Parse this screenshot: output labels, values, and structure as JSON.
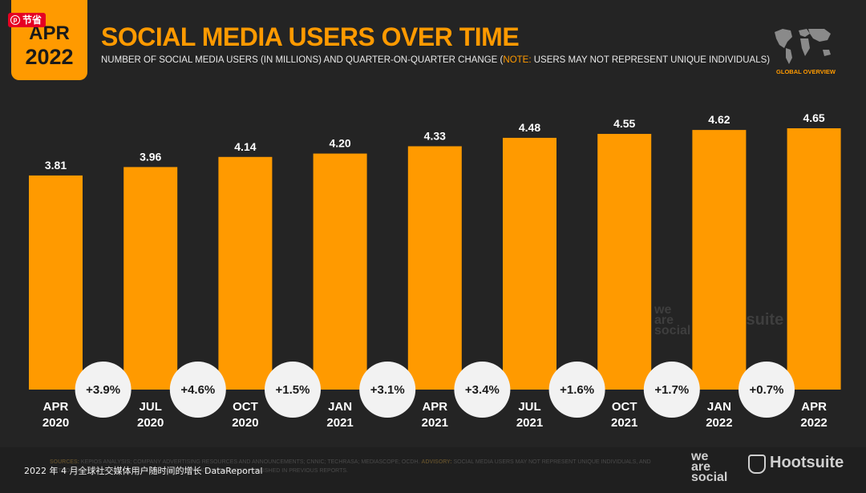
{
  "badge": {
    "month": "APR",
    "year": "2022",
    "pin_label": "节省"
  },
  "header": {
    "title": "SOCIAL MEDIA USERS OVER TIME",
    "subtitle_pre": "NUMBER OF SOCIAL MEDIA USERS (IN MILLIONS) AND QUARTER-ON-QUARTER CHANGE (",
    "subtitle_note": "NOTE:",
    "subtitle_post": " USERS MAY NOT REPRESENT UNIQUE INDIVIDUALS)",
    "region_label": "GLOBAL OVERVIEW"
  },
  "chart_data": {
    "type": "bar",
    "title": "SOCIAL MEDIA USERS OVER TIME",
    "categories": [
      [
        "APR",
        "2020"
      ],
      [
        "JUL",
        "2020"
      ],
      [
        "OCT",
        "2020"
      ],
      [
        "JAN",
        "2021"
      ],
      [
        "APR",
        "2021"
      ],
      [
        "JUL",
        "2021"
      ],
      [
        "OCT",
        "2021"
      ],
      [
        "JAN",
        "2022"
      ],
      [
        "APR",
        "2022"
      ]
    ],
    "values": [
      3.81,
      3.96,
      4.14,
      4.2,
      4.33,
      4.48,
      4.55,
      4.62,
      4.65
    ],
    "value_labels": [
      "3.81",
      "3.96",
      "4.14",
      "4.20",
      "4.33",
      "4.48",
      "4.55",
      "4.62",
      "4.65"
    ],
    "changes": [
      "+3.9%",
      "+4.6%",
      "+1.5%",
      "+3.1%",
      "+3.4%",
      "+1.6%",
      "+1.7%",
      "+0.7%"
    ],
    "ylim": [
      0,
      4.85
    ],
    "bar_color": "#ff9a00"
  },
  "watermark": {
    "brand_lines": [
      "we",
      "are",
      "social"
    ],
    "hootsuite": "Hootsuite"
  },
  "footer": {
    "sources_label": "SOURCES:",
    "sources_text": "KEPIOS ANALYSIS; COMPANY ADVERTISING RESOURCES AND ANNOUNCEMENTS; CNNIC; TECHRASA; MEDIASCOPE; OCDH.",
    "advisory_label": "ADVISORY:",
    "advisory_text": "SOCIAL MEDIA USERS MAY NOT REPRESENT UNIQUE INDIVIDUALS, AND METHODOLOGY CHANGES. VALUES MAY NOT CORRELATE WITH THOSE PUBLISHED IN PREVIOUS REPORTS.",
    "caption": "2022 年 4 月全球社交媒体用户随时间的增长 DataReportal",
    "brand_lines": [
      "we",
      "are",
      "social"
    ],
    "hootsuite": "Hootsuite"
  },
  "colors": {
    "accent": "#ff9a00",
    "background": "#242424",
    "bubble": "#f2f2f2"
  }
}
